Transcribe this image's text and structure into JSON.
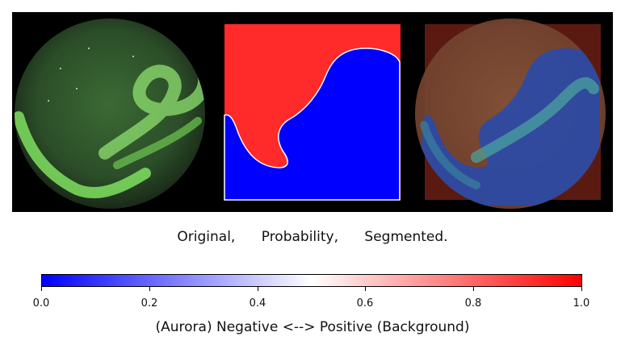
{
  "caption": "Original,      Probability,      Segmented.",
  "colorbar": {
    "label": "(Aurora) Negative <--> Positive (Background)",
    "min": 0.0,
    "max": 1.0,
    "tick_labels": [
      "0.0",
      "0.2",
      "0.4",
      "0.6",
      "0.8",
      "1.0"
    ],
    "colors": {
      "low": "#0000ff",
      "mid": "#ffffff",
      "high": "#ff0000"
    }
  },
  "panels": [
    {
      "name": "original"
    },
    {
      "name": "probability"
    },
    {
      "name": "segmented"
    }
  ],
  "colors": {
    "aurora_green": "#5fbf4a",
    "sky_dark": "#1c3320",
    "background_red": "#ff2a2a",
    "aurora_blue": "#0000ff"
  }
}
